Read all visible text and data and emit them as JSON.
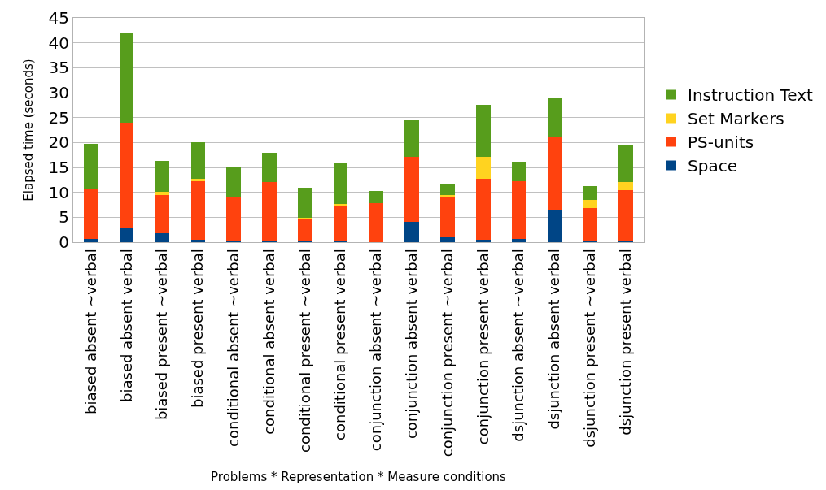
{
  "chart_data": {
    "type": "bar",
    "stacked": true,
    "xlabel": "Problems * Representation * Measure conditions",
    "ylabel": "Elapsed time (seconds)",
    "categories": [
      "biased absent ~verbal",
      "biased absent verbal",
      "biased present ~verbal",
      "biased present verbal",
      "conditional absent ~verbal",
      "conditional absent verbal",
      "conditional present ~verbal",
      "conditional present verbal",
      "conjunction absent ~verbal",
      "conjunction absent verbal",
      "conjunction present ~verbal",
      "conjunction present verbal",
      "dsjunction absent ~verbal",
      "dsjunction absent verbal",
      "dsjunction present ~verbal",
      "dsjunction present verbal"
    ],
    "series": [
      {
        "name": "Space",
        "color": "#004586",
        "values": [
          0.7,
          2.7,
          1.8,
          0.5,
          0.4,
          0.3,
          0.3,
          0.3,
          0,
          4.0,
          0.9,
          0.5,
          0.6,
          6.5,
          0.3,
          0.1
        ]
      },
      {
        "name": "PS-units",
        "color": "#ff420e",
        "values": [
          10.1,
          21.2,
          7.7,
          11.7,
          8.6,
          11.7,
          4.2,
          6.8,
          7.9,
          13.1,
          8.1,
          12.2,
          11.7,
          14.6,
          6.6,
          10.4
        ]
      },
      {
        "name": "Set Markers",
        "color": "#ffd320",
        "values": [
          0,
          0,
          0.6,
          0.5,
          0,
          0,
          0.4,
          0.6,
          0,
          0,
          0.5,
          4.4,
          0,
          0,
          1.6,
          1.6
        ]
      },
      {
        "name": "Instruction Text",
        "color": "#579d1c",
        "values": [
          9.0,
          18.2,
          6.2,
          7.4,
          6.1,
          5.9,
          6.0,
          8.3,
          2.3,
          7.4,
          2.2,
          10.4,
          3.9,
          7.9,
          2.8,
          7.4
        ]
      }
    ],
    "ylim": [
      0,
      45
    ],
    "yticks": [
      0,
      5,
      10,
      15,
      20,
      25,
      30,
      35,
      40,
      45
    ],
    "grid": "y",
    "legend": "right"
  }
}
